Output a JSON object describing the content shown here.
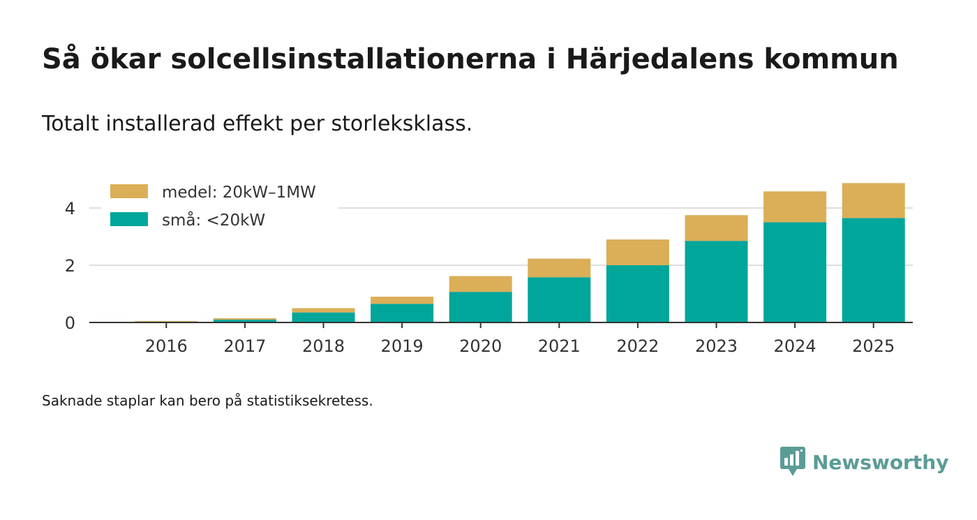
{
  "title": "Så ökar solcellsinstallationerna i Härjedalens kommun",
  "subtitle": "Totalt installerad effekt per storleksklass.",
  "note": "Saknade staplar kan bero på statistiksekretess.",
  "brand": {
    "name": "Newsworthy",
    "icon": "newsworthy-logo-icon",
    "color": "#5b9c97"
  },
  "colors": {
    "small": "#00a69a",
    "medium": "#dbae58",
    "grid": "#dddddd",
    "axis": "#333333"
  },
  "chart_data": {
    "type": "bar",
    "stacked": true,
    "categories": [
      "2016",
      "2017",
      "2018",
      "2019",
      "2020",
      "2021",
      "2022",
      "2023",
      "2024",
      "2025"
    ],
    "series": [
      {
        "name": "små: <20kW",
        "key": "small",
        "values": [
          0.02,
          0.1,
          0.35,
          0.65,
          1.07,
          1.58,
          2.0,
          2.85,
          3.5,
          3.65
        ]
      },
      {
        "name": "medel: 20kW–1MW",
        "key": "medium",
        "values": [
          0.03,
          0.05,
          0.15,
          0.25,
          0.55,
          0.65,
          0.9,
          0.9,
          1.08,
          1.22
        ]
      }
    ],
    "legend_order": [
      "medel: 20kW–1MW",
      "små: <20kW"
    ],
    "yticks": [
      "0",
      "2",
      "4"
    ],
    "ytick_values": [
      0,
      2,
      4
    ],
    "ylim": [
      0,
      5.2
    ],
    "xlabel": "",
    "ylabel": "",
    "legend_position": "top-left"
  }
}
